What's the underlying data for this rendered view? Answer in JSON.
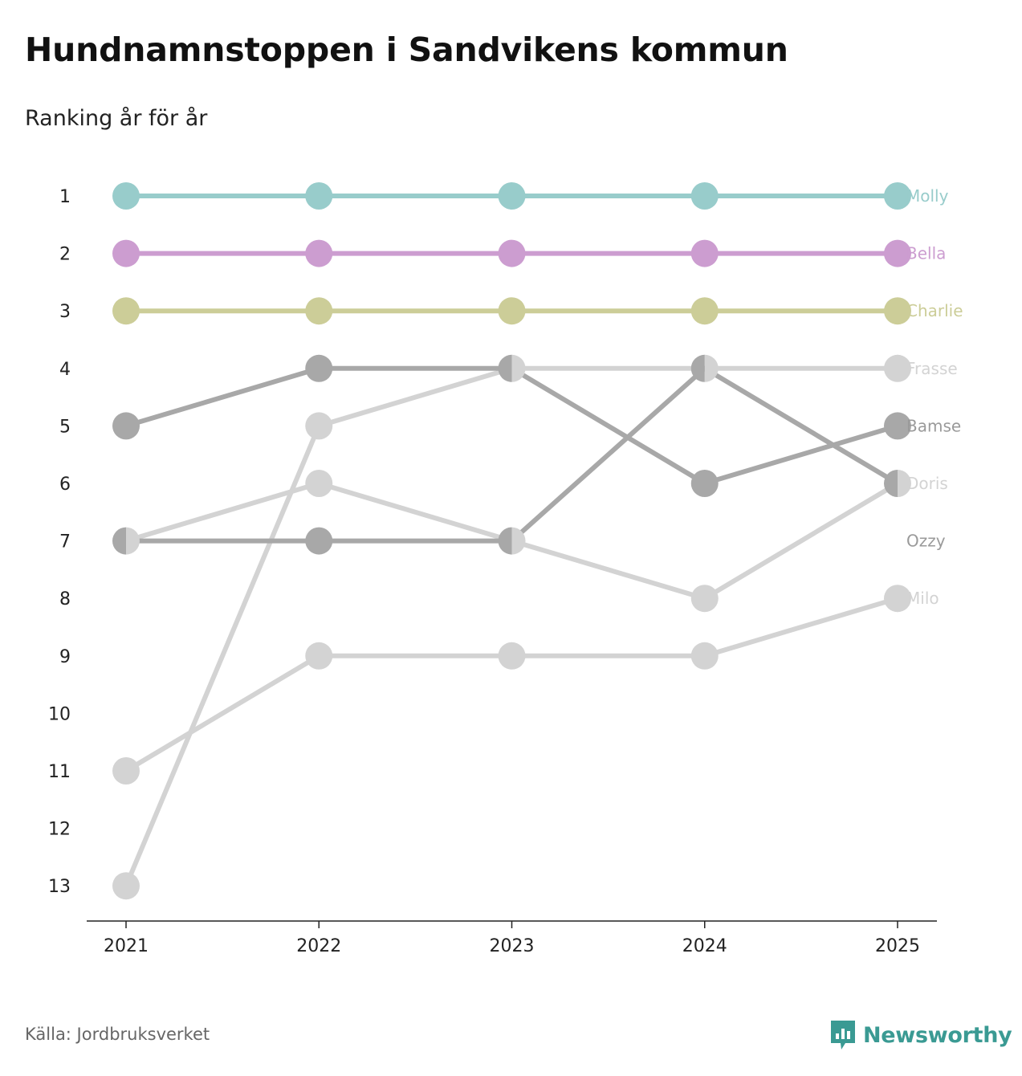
{
  "title": "Hundnamnstoppen i Sandvikens kommun",
  "subtitle": "Ranking år för år",
  "source": "Källa: Jordbruksverket",
  "brand": {
    "name": "Newsworthy",
    "icon": "newsworthy-logo-icon",
    "color": "#3a9a93"
  },
  "chart_data": {
    "type": "line",
    "subtype": "bump",
    "x": [
      "2021",
      "2022",
      "2023",
      "2024",
      "2025"
    ],
    "y_ticks": [
      "1",
      "2",
      "3",
      "4",
      "5",
      "6",
      "7",
      "8",
      "9",
      "10",
      "11",
      "12",
      "13"
    ],
    "ylim": [
      13,
      1
    ],
    "y_inverted": true,
    "grid": false,
    "series": [
      {
        "name": "Molly",
        "color": "#98cccb",
        "values": [
          1,
          1,
          1,
          1,
          1
        ]
      },
      {
        "name": "Bella",
        "color": "#cc9dd0",
        "values": [
          2,
          2,
          2,
          2,
          2
        ]
      },
      {
        "name": "Charlie",
        "color": "#cccd98",
        "values": [
          3,
          3,
          3,
          3,
          3
        ]
      },
      {
        "name": "Frasse",
        "color": "#d3d3d3",
        "values": [
          13,
          5,
          4,
          4,
          4
        ]
      },
      {
        "name": "Bamse",
        "color": "#a8a8a8",
        "values": [
          5,
          4,
          4,
          6,
          5
        ]
      },
      {
        "name": "Doris",
        "color": "#d3d3d3",
        "values": [
          7,
          6,
          7,
          8,
          6
        ]
      },
      {
        "name": "Ozzy",
        "color": "#a8a8a8",
        "values": [
          7,
          7,
          7,
          4,
          6
        ]
      },
      {
        "name": "Milo",
        "color": "#d3d3d3",
        "values": [
          11,
          9,
          9,
          9,
          8
        ]
      }
    ],
    "end_labels": [
      {
        "name": "Molly",
        "rank": 1
      },
      {
        "name": "Bella",
        "rank": 2
      },
      {
        "name": "Charlie",
        "rank": 3
      },
      {
        "name": "Frasse",
        "rank": 4
      },
      {
        "name": "Bamse",
        "rank": 5
      },
      {
        "name": "Doris",
        "rank": 6
      },
      {
        "name": "Ozzy",
        "rank": 7
      },
      {
        "name": "Milo",
        "rank": 8
      }
    ]
  }
}
